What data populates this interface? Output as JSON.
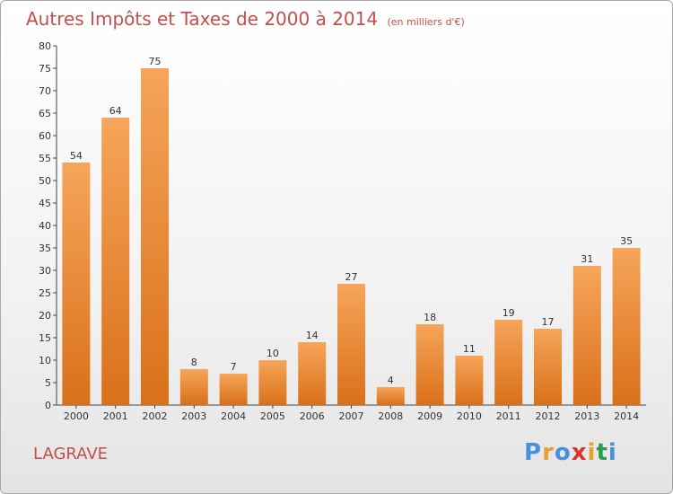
{
  "chart_data": {
    "type": "bar",
    "title": "Autres Impôts et Taxes de 2000 à 2014",
    "subtitle": "(en milliers d'€)",
    "categories": [
      "2000",
      "2001",
      "2002",
      "2003",
      "2004",
      "2005",
      "2006",
      "2007",
      "2008",
      "2009",
      "2010",
      "2011",
      "2012",
      "2013",
      "2014"
    ],
    "values": [
      54,
      64,
      75,
      8,
      7,
      10,
      14,
      27,
      4,
      18,
      11,
      19,
      17,
      31,
      35
    ],
    "ylim": [
      0,
      80
    ],
    "yticks": [
      0,
      5,
      10,
      15,
      20,
      25,
      30,
      35,
      40,
      45,
      50,
      55,
      60,
      65,
      70,
      75,
      80
    ],
    "grid": false,
    "bar_color": "#f0923a",
    "bar_color_top": "#f6a55a",
    "bar_color_bottom": "#d9701a"
  },
  "commune": "LAGRAVE",
  "logo": {
    "letters": [
      "P",
      "r",
      "o",
      "x",
      "i",
      "t",
      "i"
    ],
    "colors": [
      "#4a90d9",
      "#e8a033",
      "#4a90d9",
      "#d9342b",
      "#e8a033",
      "#2a9f4a",
      "#4a90d9"
    ]
  },
  "colors": {
    "title": "#c0504d",
    "axis": "#444444"
  }
}
